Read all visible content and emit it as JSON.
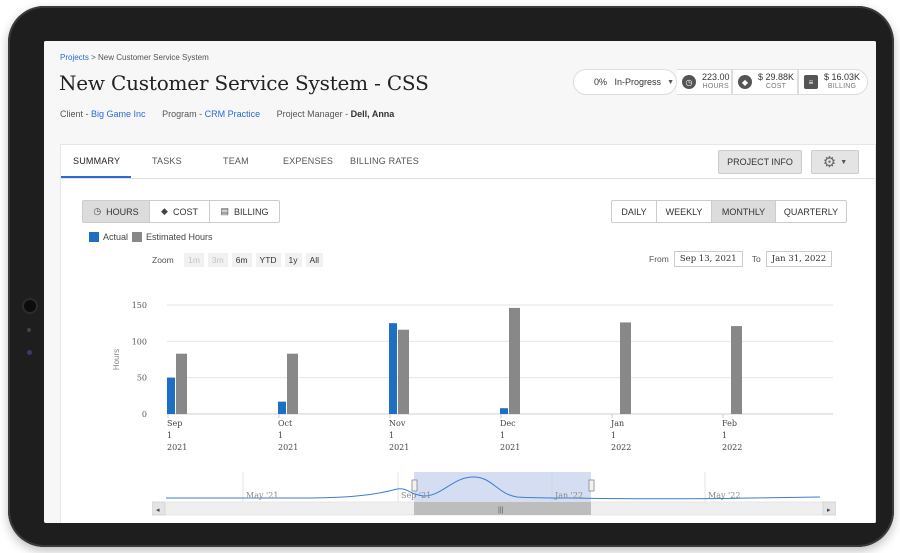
{
  "breadcrumb": {
    "root": "Projects",
    "separator": " > ",
    "current": "New Customer Service System"
  },
  "project": {
    "title": "New Customer Service System - CSS",
    "client_label": "Client - ",
    "client_value": "Big Game Inc",
    "program_label": "Program - ",
    "program_value": "CRM Practice",
    "manager_label": "Project Manager - ",
    "manager_value": "Dell, Anna"
  },
  "status": {
    "percent": "0%",
    "state": "In-Progress"
  },
  "kpis": [
    {
      "icon": "clock-icon",
      "value": "223.00",
      "label": "HOURS"
    },
    {
      "icon": "tag-icon",
      "value": "$ 29.88K",
      "label": "COST"
    },
    {
      "icon": "billing-icon",
      "value": "$ 16.03K",
      "label": "BILLING"
    }
  ],
  "tabs": [
    "SUMMARY",
    "TASKS",
    "TEAM",
    "EXPENSES",
    "BILLING RATES"
  ],
  "active_tab": "SUMMARY",
  "buttons": {
    "project_info": "PROJECT INFO"
  },
  "metric_toggle": [
    "HOURS",
    "COST",
    "BILLING"
  ],
  "period_toggle": [
    "DAILY",
    "WEEKLY",
    "MONTHLY",
    "QUARTERLY"
  ],
  "legend": {
    "actual": "Actual",
    "estimated": "Estimated Hours"
  },
  "zoom": {
    "label": "Zoom",
    "options": [
      "1m",
      "3m",
      "6m",
      "YTD",
      "1y",
      "All"
    ],
    "disabled": [
      "1m",
      "3m"
    ]
  },
  "range": {
    "from_label": "From",
    "from": "Sep 13, 2021",
    "to_label": "To",
    "to": "Jan 31, 2022"
  },
  "colors": {
    "actual": "#1d6fc5",
    "estimated": "#888888",
    "accent": "#2a6ad8"
  },
  "chart_data": {
    "type": "bar",
    "ylabel": "Hours",
    "ylim": [
      0,
      150
    ],
    "yticks": [
      0,
      50,
      100,
      150
    ],
    "categories": [
      [
        "Sep",
        "1",
        "2021"
      ],
      [
        "Oct",
        "1",
        "2021"
      ],
      [
        "Nov",
        "1",
        "2021"
      ],
      [
        "Dec",
        "1",
        "2021"
      ],
      [
        "Jan",
        "1",
        "2022"
      ],
      [
        "Feb",
        "1",
        "2022"
      ]
    ],
    "series": [
      {
        "name": "Actual",
        "values": [
          50,
          17,
          125,
          8,
          0,
          0
        ]
      },
      {
        "name": "Estimated Hours",
        "values": [
          83,
          83,
          116,
          146,
          126,
          121
        ]
      }
    ],
    "navigator": {
      "labels": [
        "May '21",
        "Sep '21",
        "Jan '22",
        "May '22"
      ]
    }
  }
}
